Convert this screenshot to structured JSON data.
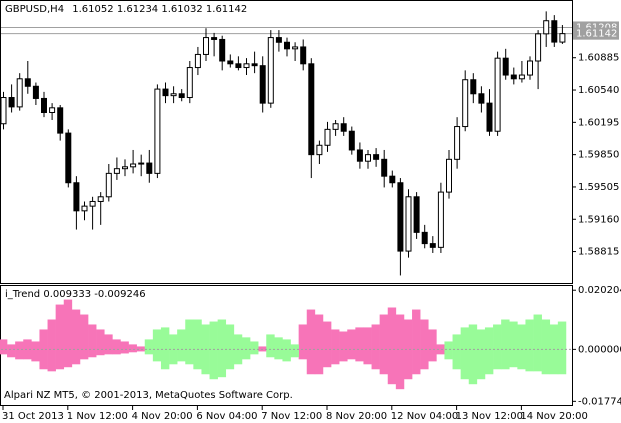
{
  "chart_data": [
    {
      "type": "candlestick",
      "title": "GBPUSD,H4",
      "categories": [
        "31 Oct 2013",
        null,
        null,
        null,
        null,
        null,
        null,
        null,
        "1 Nov 12:00",
        null,
        null,
        null,
        null,
        null,
        null,
        null,
        "4 Nov 20:00",
        null,
        null,
        null,
        null,
        null,
        null,
        null,
        "6 Nov 04:00",
        null,
        null,
        null,
        null,
        null,
        null,
        null,
        "7 Nov 12:00",
        null,
        null,
        null,
        null,
        null,
        null,
        null,
        "8 Nov 20:00",
        null,
        null,
        null,
        null,
        null,
        null,
        null,
        "12 Nov 04:00",
        null,
        null,
        null,
        null,
        null,
        null,
        null,
        "13 Nov 12:00",
        null,
        null,
        null,
        null,
        null,
        null,
        null,
        "14 Nov 20:00",
        null,
        null,
        null,
        null,
        null
      ],
      "open": [
        1.6018,
        1.6046,
        1.6036,
        1.6066,
        1.6058,
        1.6045,
        1.603,
        1.6035,
        1.6008,
        1.5955,
        1.5925,
        1.593,
        1.5935,
        1.594,
        1.5965,
        1.597,
        1.5972,
        1.5975,
        1.5976,
        1.5965,
        1.6055,
        1.6048,
        1.605,
        1.6046,
        1.6078,
        1.6092,
        1.611,
        1.6108,
        1.6085,
        1.6082,
        1.6078,
        1.6082,
        1.608,
        1.604,
        1.611,
        1.6105,
        1.6098,
        1.61,
        1.6082,
        1.5985,
        1.5995,
        1.6012,
        1.6018,
        1.601,
        1.599,
        1.5978,
        1.5985,
        1.598,
        1.5962,
        1.5955,
        1.5882,
        1.594,
        1.5902,
        1.589,
        1.5886,
        1.5945,
        1.598,
        1.6015,
        1.6065,
        1.605,
        1.604,
        1.601,
        1.6088,
        1.607,
        1.6066,
        1.607,
        1.6085,
        1.6114,
        1.6128,
        1.61052
      ],
      "high": [
        1.6052,
        1.606,
        1.6072,
        1.6085,
        1.6062,
        1.6052,
        1.604,
        1.6038,
        1.6012,
        1.5962,
        1.5935,
        1.594,
        1.5945,
        1.5975,
        1.5982,
        1.598,
        1.599,
        1.5985,
        1.599,
        1.606,
        1.6062,
        1.6058,
        1.6055,
        1.6085,
        1.61,
        1.612,
        1.6115,
        1.6112,
        1.6092,
        1.609,
        1.6088,
        1.6095,
        1.609,
        1.6118,
        1.6118,
        1.611,
        1.6105,
        1.6108,
        1.6088,
        1.6,
        1.602,
        1.6022,
        1.6025,
        1.6015,
        1.5998,
        1.599,
        1.5992,
        1.599,
        1.5968,
        1.596,
        1.5948,
        1.5945,
        1.591,
        1.5898,
        1.5955,
        1.599,
        1.6025,
        1.6075,
        1.6072,
        1.6058,
        1.6055,
        1.6095,
        1.6098,
        1.6078,
        1.6085,
        1.609,
        1.6118,
        1.6138,
        1.6134,
        1.61234
      ],
      "low": [
        1.6012,
        1.603,
        1.6032,
        1.605,
        1.6038,
        1.6025,
        1.6022,
        1.6,
        1.595,
        1.5905,
        1.5915,
        1.5905,
        1.591,
        1.5935,
        1.5958,
        1.5962,
        1.5965,
        1.5962,
        1.5955,
        1.596,
        1.604,
        1.604,
        1.6042,
        1.604,
        1.607,
        1.6085,
        1.609,
        1.6075,
        1.6078,
        1.6075,
        1.607,
        1.6072,
        1.603,
        1.6035,
        1.6095,
        1.609,
        1.6085,
        1.6075,
        1.596,
        1.5975,
        1.5988,
        1.6005,
        1.6005,
        1.5985,
        1.597,
        1.597,
        1.5972,
        1.595,
        1.595,
        1.5856,
        1.5875,
        1.5895,
        1.5885,
        1.588,
        1.588,
        1.5938,
        1.597,
        1.601,
        1.604,
        1.603,
        1.6005,
        1.6005,
        1.6065,
        1.606,
        1.6062,
        1.6065,
        1.6055,
        1.61,
        1.61,
        1.61032
      ],
      "close": [
        1.6046,
        1.6036,
        1.6066,
        1.6058,
        1.6045,
        1.603,
        1.6035,
        1.6008,
        1.5955,
        1.5925,
        1.593,
        1.5935,
        1.594,
        1.5965,
        1.597,
        1.5972,
        1.5975,
        1.5976,
        1.5965,
        1.6055,
        1.6048,
        1.605,
        1.6046,
        1.6078,
        1.6092,
        1.611,
        1.6108,
        1.6085,
        1.6082,
        1.6078,
        1.6082,
        1.608,
        1.604,
        1.611,
        1.6105,
        1.6098,
        1.61,
        1.6082,
        1.5985,
        1.5995,
        1.6012,
        1.6018,
        1.601,
        1.599,
        1.5978,
        1.5985,
        1.598,
        1.5962,
        1.5955,
        1.5882,
        1.594,
        1.5902,
        1.589,
        1.5886,
        1.5945,
        1.598,
        1.6015,
        1.6065,
        1.605,
        1.604,
        1.601,
        1.6088,
        1.607,
        1.6066,
        1.607,
        1.6085,
        1.6114,
        1.6128,
        1.61052,
        1.61142
      ],
      "price_lines": [
        1.61208,
        1.61142
      ],
      "ylim": [
        1.5849,
        1.6148
      ],
      "yticks": [
        1.60885,
        {
          "value": 1.6054,
          "label": "1.60540"
        },
        1.60195,
        {
          "value": 1.5985,
          "label": "1.59850"
        },
        1.59505,
        {
          "value": 1.5916,
          "label": "1.59160"
        },
        1.58815
      ]
    },
    {
      "type": "band",
      "title": "i_Trend",
      "readout": [
        0.009333,
        -0.009246
      ],
      "series": [
        {
          "color": "#f774b8",
          "upper": [
            0.0034,
            0.0017,
            0.0027,
            0.0034,
            0.0027,
            0.0068,
            0.0102,
            0.0153,
            0.017,
            0.0136,
            0.0119,
            0.0085,
            0.0068,
            0.0051,
            0.0034,
            0.0027,
            0.0017,
            0.001,
            null,
            null,
            null,
            null,
            null,
            null,
            null,
            null,
            null,
            null,
            null,
            null,
            null,
            null,
            0.001,
            null,
            null,
            null,
            null,
            0.0085,
            0.0136,
            0.0119,
            0.0095,
            0.0068,
            0.0061,
            0.0068,
            0.0075,
            0.0075,
            0.0085,
            0.0119,
            0.0143,
            0.0119,
            0.0102,
            0.0136,
            0.0102,
            0.0068,
            0.0017,
            null,
            null,
            null,
            null,
            null,
            null,
            null,
            null,
            null,
            null,
            null,
            null,
            null,
            null,
            null
          ],
          "lower": [
            -0.0017,
            -0.0027,
            -0.0034,
            -0.0034,
            -0.0041,
            -0.0068,
            -0.0075,
            -0.0068,
            -0.0061,
            -0.0051,
            -0.0034,
            -0.0027,
            -0.002,
            -0.0017,
            -0.0017,
            -0.0014,
            -0.001,
            -0.0007,
            null,
            null,
            null,
            null,
            null,
            null,
            null,
            null,
            null,
            null,
            null,
            null,
            null,
            null,
            -0.0007,
            null,
            null,
            null,
            null,
            -0.0034,
            -0.0085,
            -0.0085,
            -0.0061,
            -0.0051,
            -0.0041,
            -0.0034,
            -0.0041,
            -0.0051,
            -0.0068,
            -0.0085,
            -0.0119,
            -0.0136,
            -0.0102,
            -0.0085,
            -0.0068,
            -0.0041,
            -0.0017,
            null,
            null,
            null,
            null,
            null,
            null,
            null,
            null,
            null,
            null,
            null,
            null,
            null,
            null,
            null
          ]
        },
        {
          "color": "#98fb98",
          "upper": [
            null,
            null,
            null,
            null,
            null,
            null,
            null,
            null,
            null,
            null,
            null,
            null,
            null,
            null,
            null,
            null,
            null,
            null,
            0.0034,
            0.0068,
            0.0075,
            0.0051,
            0.0068,
            0.0102,
            0.0102,
            0.0085,
            0.0095,
            0.0102,
            0.0085,
            0.0051,
            0.0041,
            0.0027,
            null,
            0.0051,
            0.0041,
            0.0034,
            0.0017,
            null,
            null,
            null,
            null,
            null,
            null,
            null,
            null,
            null,
            null,
            null,
            null,
            null,
            null,
            null,
            null,
            null,
            null,
            0.0027,
            0.0051,
            0.0075,
            0.0085,
            0.0068,
            0.0075,
            0.0085,
            0.0102,
            0.0095,
            0.0085,
            0.0102,
            0.0119,
            0.0102,
            0.0085,
            0.0095
          ],
          "lower": [
            null,
            null,
            null,
            null,
            null,
            null,
            null,
            null,
            null,
            null,
            null,
            null,
            null,
            null,
            null,
            null,
            null,
            null,
            -0.0017,
            -0.0041,
            -0.0068,
            -0.0051,
            -0.0041,
            -0.0051,
            -0.0068,
            -0.0085,
            -0.0102,
            -0.0095,
            -0.0068,
            -0.0051,
            -0.0034,
            -0.0017,
            null,
            -0.0027,
            -0.0034,
            -0.0041,
            -0.0027,
            null,
            null,
            null,
            null,
            null,
            null,
            null,
            null,
            null,
            null,
            null,
            null,
            null,
            null,
            null,
            null,
            null,
            null,
            -0.0034,
            -0.0068,
            -0.0102,
            -0.0119,
            -0.0102,
            -0.0085,
            -0.0068,
            -0.0068,
            -0.0061,
            -0.0068,
            -0.0075,
            -0.0075,
            -0.0085,
            -0.0085,
            -0.0085
          ]
        }
      ],
      "ylim": [
        -0.019,
        0.0213
      ],
      "yticks": [
        0.020204,
        {
          "value": 0,
          "label": "0.000000"
        },
        -0.017746
      ],
      "note": "Alpari NZ MT5, © 2001-2013, MetaQuotes Software Corp."
    }
  ]
}
